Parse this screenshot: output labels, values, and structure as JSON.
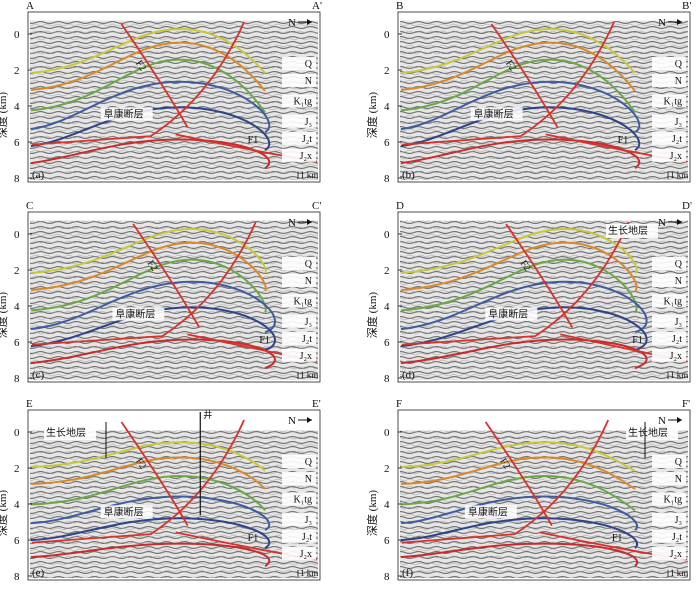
{
  "figure": {
    "y_axis": {
      "label": "深度 (km)",
      "ticks": [
        "0",
        "2",
        "4",
        "6",
        "8"
      ]
    },
    "scale_label": "1 km",
    "north_label": "N",
    "fault_main_label": "阜康断层",
    "fault_f1_label": "F1",
    "fault_f2_label": "F2",
    "growth_strata_label": "生长地层",
    "well_label": "井",
    "horizon_colors": {
      "Q": "#c8c83a",
      "N": "#d9892a",
      "K1tg": "#6aa846",
      "J3": "#3d5da0",
      "J2t": "#2e4488",
      "J2x": "#cc2a2a",
      "fault": "#d8322a"
    },
    "panels": [
      {
        "id": "a",
        "tag": "(a)",
        "left_corner": "A",
        "right_corner": "A'",
        "formations": [
          "Q",
          "N",
          "K₁tg",
          "J₃",
          "J₂t",
          "J₂x"
        ],
        "growth": false,
        "well": false
      },
      {
        "id": "b",
        "tag": "(b)",
        "left_corner": "B",
        "right_corner": "B'",
        "formations": [
          "Q",
          "N",
          "K₁tg",
          "J₃",
          "J₂t",
          "J₂x"
        ],
        "growth": false,
        "well": false
      },
      {
        "id": "c",
        "tag": "(c)",
        "left_corner": "C",
        "right_corner": "C'",
        "formations": [
          "Q",
          "N",
          "K₁tg",
          "J₃",
          "J₂t",
          "J₂x"
        ],
        "growth": false,
        "well": false
      },
      {
        "id": "d",
        "tag": "(d)",
        "left_corner": "D",
        "right_corner": "D'",
        "formations": [
          "Q",
          "N",
          "K₁tg",
          "J₃",
          "J₂t",
          "J₂x"
        ],
        "growth": true,
        "well": false
      },
      {
        "id": "e",
        "tag": "(e)",
        "left_corner": "E",
        "right_corner": "E'",
        "formations": [
          "Q",
          "N",
          "K₁tg",
          "J₃",
          "J₂t",
          "J₂x"
        ],
        "growth": true,
        "well": true
      },
      {
        "id": "f",
        "tag": "(f)",
        "left_corner": "F",
        "right_corner": "F'",
        "formations": [
          "Q",
          "N",
          "K₁tg",
          "J₃",
          "J₂t",
          "J₂x"
        ],
        "growth": true,
        "well": false
      }
    ]
  }
}
